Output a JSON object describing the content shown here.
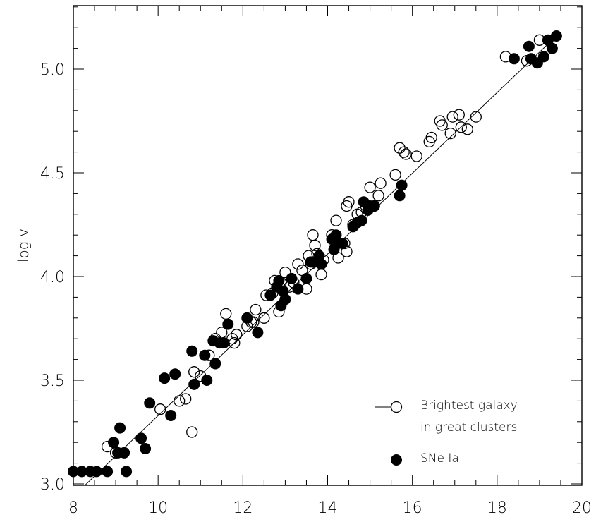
{
  "chart_data": {
    "type": "scatter",
    "title": "",
    "xlabel": "",
    "ylabel": "log v",
    "xlim": [
      8,
      20
    ],
    "ylim": [
      3.0,
      5.3
    ],
    "x_ticks": [
      "8",
      "10",
      "12",
      "14",
      "16",
      "18",
      "20"
    ],
    "y_ticks": [
      "3.0",
      "3.5",
      "4.0",
      "4.5",
      "5.0"
    ],
    "grid": false,
    "legend_position": "bottom-right",
    "series": [
      {
        "name": "Brightest galaxy in great clusters",
        "name_lines": [
          "Brightest galaxy",
          "in great clusters"
        ],
        "marker": "open-circle",
        "points": [
          [
            8.8,
            3.18
          ],
          [
            9.0,
            3.15
          ],
          [
            10.8,
            3.25
          ],
          [
            10.05,
            3.36
          ],
          [
            10.5,
            3.4
          ],
          [
            10.65,
            3.41
          ],
          [
            10.85,
            3.54
          ],
          [
            11.0,
            3.52
          ],
          [
            11.2,
            3.62
          ],
          [
            11.35,
            3.7
          ],
          [
            11.5,
            3.73
          ],
          [
            11.6,
            3.82
          ],
          [
            11.75,
            3.7
          ],
          [
            11.85,
            3.72
          ],
          [
            11.8,
            3.68
          ],
          [
            12.1,
            3.76
          ],
          [
            12.2,
            3.78
          ],
          [
            12.3,
            3.84
          ],
          [
            12.25,
            3.78
          ],
          [
            12.5,
            3.8
          ],
          [
            12.55,
            3.91
          ],
          [
            12.7,
            3.92
          ],
          [
            12.75,
            3.98
          ],
          [
            12.85,
            3.83
          ],
          [
            12.9,
            3.97
          ],
          [
            13.0,
            4.02
          ],
          [
            13.1,
            3.95
          ],
          [
            13.2,
            3.97
          ],
          [
            13.3,
            4.06
          ],
          [
            13.4,
            4.03
          ],
          [
            13.5,
            3.94
          ],
          [
            13.55,
            4.1
          ],
          [
            13.6,
            4.06
          ],
          [
            13.65,
            4.2
          ],
          [
            13.7,
            4.15
          ],
          [
            13.75,
            4.11
          ],
          [
            13.85,
            4.01
          ],
          [
            13.9,
            4.08
          ],
          [
            14.1,
            4.2
          ],
          [
            14.2,
            4.27
          ],
          [
            14.25,
            4.09
          ],
          [
            14.4,
            4.16
          ],
          [
            14.45,
            4.12
          ],
          [
            14.45,
            4.34
          ],
          [
            14.5,
            4.36
          ],
          [
            14.6,
            4.25
          ],
          [
            14.7,
            4.3
          ],
          [
            14.8,
            4.31
          ],
          [
            14.9,
            4.34
          ],
          [
            15.0,
            4.43
          ],
          [
            15.1,
            4.34
          ],
          [
            15.2,
            4.39
          ],
          [
            15.25,
            4.45
          ],
          [
            15.6,
            4.49
          ],
          [
            15.7,
            4.62
          ],
          [
            15.8,
            4.6
          ],
          [
            15.85,
            4.59
          ],
          [
            16.1,
            4.58
          ],
          [
            16.4,
            4.65
          ],
          [
            16.45,
            4.67
          ],
          [
            16.65,
            4.75
          ],
          [
            16.7,
            4.73
          ],
          [
            16.9,
            4.69
          ],
          [
            16.95,
            4.77
          ],
          [
            17.1,
            4.78
          ],
          [
            17.15,
            4.72
          ],
          [
            17.3,
            4.71
          ],
          [
            17.5,
            4.77
          ],
          [
            18.2,
            5.06
          ],
          [
            18.7,
            5.04
          ],
          [
            19.0,
            5.14
          ]
        ]
      },
      {
        "name": "SNe Ia",
        "name_lines": [
          "SNe Ia"
        ],
        "marker": "filled-circle",
        "points": [
          [
            8.0,
            3.06
          ],
          [
            8.2,
            3.06
          ],
          [
            8.4,
            3.06
          ],
          [
            8.55,
            3.06
          ],
          [
            8.8,
            3.06
          ],
          [
            8.95,
            3.2
          ],
          [
            9.05,
            3.15
          ],
          [
            9.1,
            3.27
          ],
          [
            9.2,
            3.15
          ],
          [
            9.25,
            3.06
          ],
          [
            9.6,
            3.22
          ],
          [
            9.7,
            3.17
          ],
          [
            9.8,
            3.39
          ],
          [
            10.15,
            3.51
          ],
          [
            10.3,
            3.33
          ],
          [
            10.4,
            3.53
          ],
          [
            10.8,
            3.64
          ],
          [
            10.85,
            3.48
          ],
          [
            11.1,
            3.62
          ],
          [
            11.15,
            3.5
          ],
          [
            11.3,
            3.69
          ],
          [
            11.35,
            3.58
          ],
          [
            11.45,
            3.68
          ],
          [
            11.55,
            3.68
          ],
          [
            11.65,
            3.77
          ],
          [
            12.1,
            3.8
          ],
          [
            12.35,
            3.73
          ],
          [
            12.65,
            3.91
          ],
          [
            12.8,
            3.95
          ],
          [
            12.85,
            3.98
          ],
          [
            12.9,
            3.86
          ],
          [
            12.95,
            3.93
          ],
          [
            13.0,
            3.89
          ],
          [
            13.15,
            3.99
          ],
          [
            13.3,
            3.94
          ],
          [
            13.5,
            3.99
          ],
          [
            13.6,
            4.07
          ],
          [
            13.7,
            4.07
          ],
          [
            13.8,
            4.1
          ],
          [
            13.85,
            4.06
          ],
          [
            14.1,
            4.18
          ],
          [
            14.15,
            4.13
          ],
          [
            14.2,
            4.2
          ],
          [
            14.25,
            4.16
          ],
          [
            14.35,
            4.16
          ],
          [
            14.6,
            4.24
          ],
          [
            14.7,
            4.26
          ],
          [
            14.8,
            4.27
          ],
          [
            14.85,
            4.36
          ],
          [
            14.95,
            4.32
          ],
          [
            15.0,
            4.34
          ],
          [
            15.1,
            4.34
          ],
          [
            15.7,
            4.39
          ],
          [
            15.75,
            4.44
          ],
          [
            18.4,
            5.05
          ],
          [
            18.75,
            5.11
          ],
          [
            18.8,
            5.05
          ],
          [
            18.95,
            5.03
          ],
          [
            19.1,
            5.06
          ],
          [
            19.2,
            5.14
          ],
          [
            19.3,
            5.1
          ],
          [
            19.4,
            5.16
          ]
        ]
      }
    ],
    "fit_line": {
      "x": [
        8.0,
        19.4
      ],
      "y": [
        2.94,
        5.16
      ]
    }
  }
}
